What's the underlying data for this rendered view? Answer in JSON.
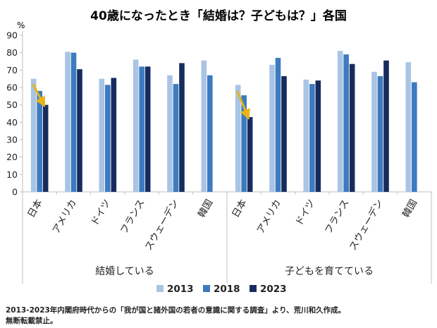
{
  "chart_data": {
    "type": "bar",
    "title": "40歳になったとき「結婚は？子どもは？」各国",
    "ylabel": "%",
    "ylim": [
      0,
      90
    ],
    "yticks": [
      0,
      10,
      20,
      30,
      40,
      50,
      60,
      70,
      80,
      90
    ],
    "grid": false,
    "legend_position": "bottom",
    "categories": [
      "日本",
      "アメリカ",
      "ドイツ",
      "フランス",
      "スウェーデン",
      "韓国"
    ],
    "groups": [
      {
        "name": "結婚している",
        "series": [
          {
            "name": "2013",
            "values": [
              65,
              80.5,
              65,
              76,
              67,
              75.5
            ]
          },
          {
            "name": "2018",
            "values": [
              58,
              80,
              61.5,
              72,
              62,
              67
            ]
          },
          {
            "name": "2023",
            "values": [
              50,
              70.5,
              65.5,
              72,
              74,
              null
            ]
          }
        ]
      },
      {
        "name": "子どもを育てている",
        "series": [
          {
            "name": "2013",
            "values": [
              61.5,
              73,
              64.5,
              81,
              69,
              74.5
            ]
          },
          {
            "name": "2018",
            "values": [
              55.5,
              77,
              62,
              79,
              66.5,
              63
            ]
          },
          {
            "name": "2023",
            "values": [
              43,
              66.5,
              64,
              73.5,
              75.5,
              null
            ]
          }
        ]
      }
    ],
    "annotations": [
      {
        "type": "arrow",
        "group": 0,
        "category": "日本",
        "from_value": 62,
        "to_value": 50
      },
      {
        "type": "arrow",
        "group": 1,
        "category": "日本",
        "from_value": 58,
        "to_value": 43
      }
    ]
  },
  "colors": {
    "2013": "#a9c4e4",
    "2018": "#3d7bbf",
    "2023": "#172c5e",
    "arrow": "#e8b416",
    "axis": "#bfbfbf"
  },
  "footnote": {
    "line1": "2013-2023年内閣府時代からの「我が国と諸外国の若者の意識に関する調査」より、荒川和久作成。",
    "line2": "無断転載禁止。"
  }
}
